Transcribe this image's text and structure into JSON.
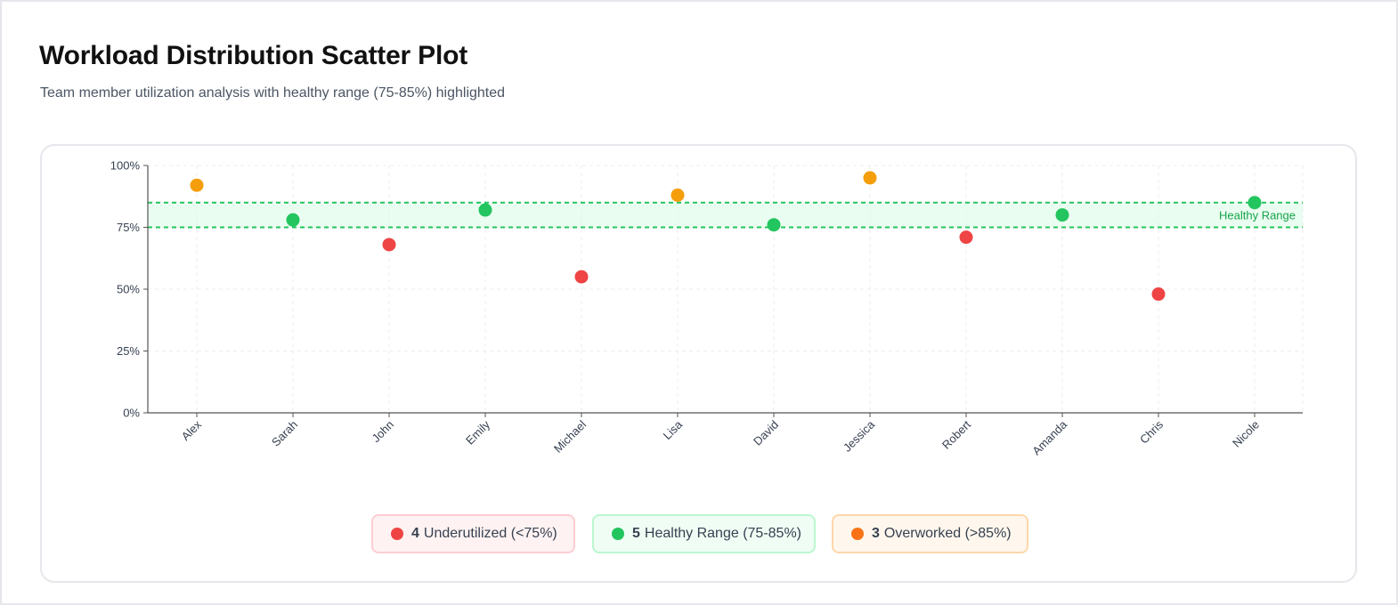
{
  "header": {
    "title": "Workload Distribution Scatter Plot",
    "subtitle": "Team member utilization analysis with healthy range (75-85%) highlighted"
  },
  "chart_data": {
    "type": "scatter",
    "categories": [
      "Alex",
      "Sarah",
      "John",
      "Emily",
      "Michael",
      "Lisa",
      "David",
      "Jessica",
      "Robert",
      "Amanda",
      "Chris",
      "Nicole"
    ],
    "values": [
      92,
      78,
      68,
      82,
      55,
      88,
      76,
      95,
      71,
      80,
      48,
      85
    ],
    "ylim": [
      0,
      100
    ],
    "yticks": [
      0,
      25,
      50,
      75,
      100
    ],
    "ytick_suffix": "%",
    "healthy_band": {
      "low": 75,
      "high": 85,
      "label": "Healthy Range"
    },
    "grid": true,
    "colors": {
      "underutilized": "#ef4444",
      "healthy": "#22c55e",
      "overworked": "#f59e0b",
      "band_fill": "#dcfce7",
      "band_line": "#22c55e"
    }
  },
  "legend": {
    "underutilized": {
      "count": "4",
      "label": "Underutilized (<75%)",
      "color": "#ef4444"
    },
    "healthy": {
      "count": "5",
      "label": "Healthy Range (75-85%)",
      "color": "#22c55e"
    },
    "overworked": {
      "count": "3",
      "label": "Overworked (>85%)",
      "color": "#f97316"
    }
  }
}
